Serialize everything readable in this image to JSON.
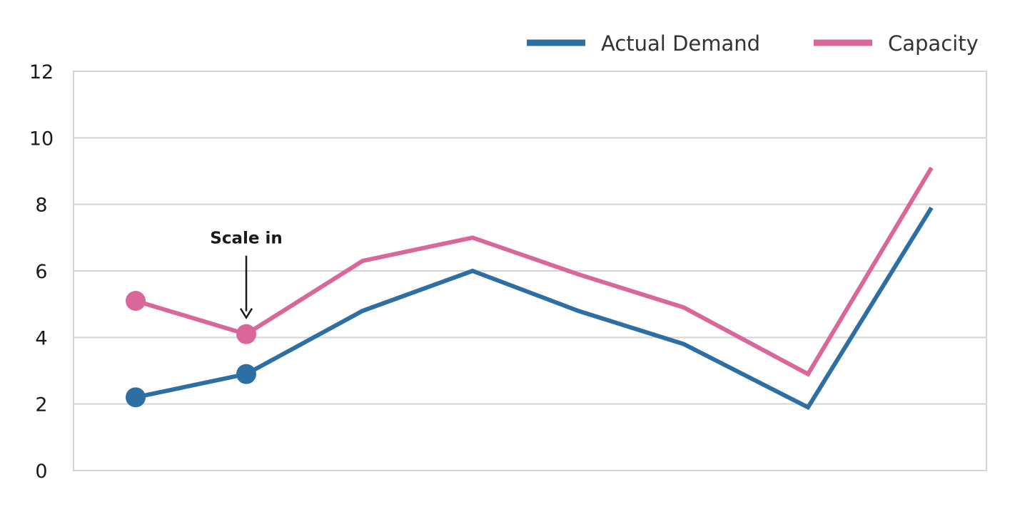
{
  "chart_data": {
    "type": "line",
    "title": "",
    "xlabel": "",
    "ylabel": "",
    "x": [
      1,
      2,
      3,
      4,
      5,
      6,
      7,
      8
    ],
    "ylim": [
      0,
      12
    ],
    "yticks": [
      "0",
      "2",
      "4",
      "6",
      "8",
      "10",
      "12"
    ],
    "grid": true,
    "legend_position": "top-right",
    "series": [
      {
        "name": "Actual Demand",
        "color": "#2e6fa3",
        "values": [
          2.2,
          2.9,
          4.8,
          6.0,
          4.8,
          3.8,
          1.9,
          7.9
        ],
        "markers_on_points": [
          0,
          1
        ]
      },
      {
        "name": "Capacity",
        "color": "#d9679a",
        "values": [
          5.1,
          4.1,
          6.3,
          7.0,
          5.9,
          4.9,
          2.9,
          9.1
        ],
        "markers_on_points": [
          0,
          1
        ]
      }
    ],
    "annotations": [
      {
        "text": "Scale in",
        "series": 1,
        "point": 1,
        "arrow": "down"
      }
    ]
  }
}
